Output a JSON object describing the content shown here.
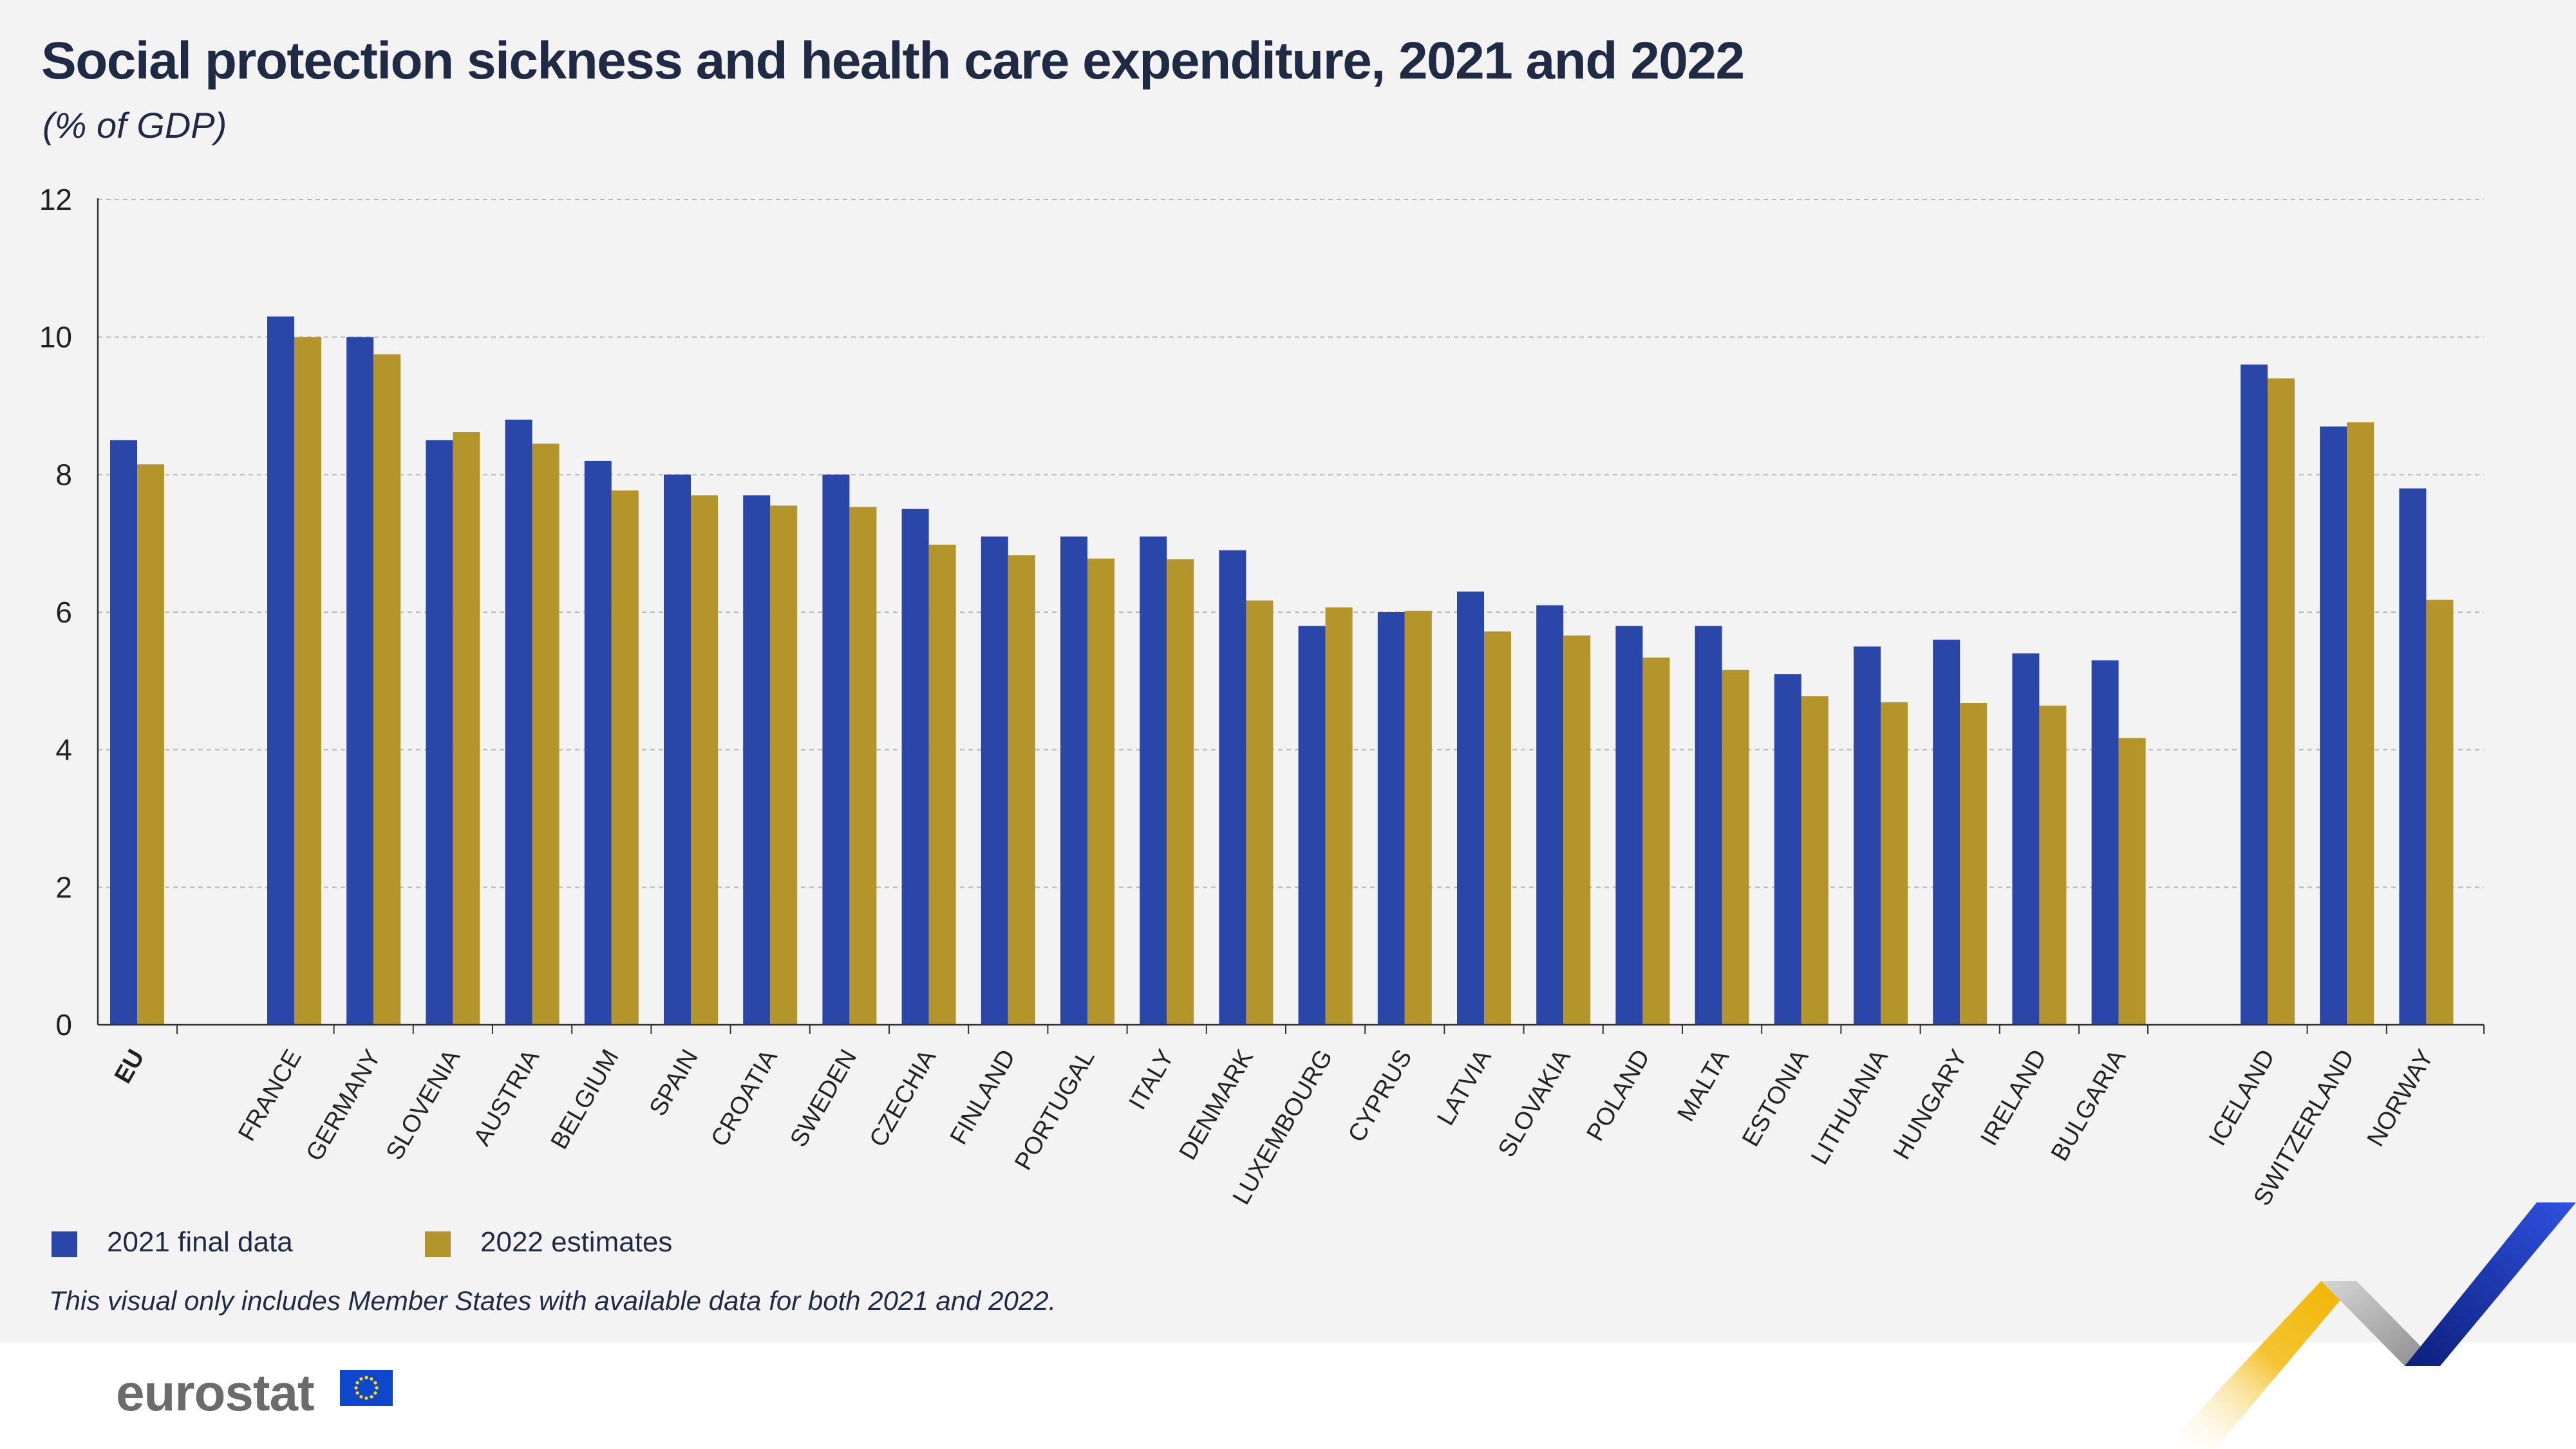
{
  "title": "Social protection sickness and health care expenditure, 2021 and 2022",
  "subtitle": "(% of GDP)",
  "legend": {
    "series_2021": "2021 final data",
    "series_2022": "2022 estimates"
  },
  "footnote": "This visual only includes Member States with available data for both 2021 and 2022.",
  "logo_text": "eurostat",
  "colors": {
    "series_2021": "#2a46a8",
    "series_2022": "#b4952b",
    "background": "#f3f3f3",
    "text": "#1f2a44"
  },
  "chart_data": {
    "type": "bar",
    "title": "Social protection sickness and health care expenditure, 2021 and 2022",
    "subtitle": "(% of GDP)",
    "xlabel": "",
    "ylabel": "",
    "ylim": [
      0,
      12
    ],
    "yticks": [
      0,
      2,
      4,
      6,
      8,
      10,
      12
    ],
    "grid": true,
    "legend_position": "bottom-left",
    "categories": [
      "EU",
      "FRANCE",
      "GERMANY",
      "SLOVENIA",
      "AUSTRIA",
      "BELGIUM",
      "SPAIN",
      "CROATIA",
      "SWEDEN",
      "CZECHIA",
      "FINLAND",
      "PORTUGAL",
      "ITALY",
      "DENMARK",
      "LUXEMBOURG",
      "CYPRUS",
      "LATVIA",
      "SLOVAKIA",
      "POLAND",
      "MALTA",
      "ESTONIA",
      "LITHUANIA",
      "HUNGARY",
      "IRELAND",
      "BULGARIA",
      "ICELAND",
      "SWITZERLAND",
      "NORWAY"
    ],
    "series": [
      {
        "name": "2021 final data",
        "values": [
          8.5,
          10.3,
          10.0,
          8.5,
          8.8,
          8.2,
          8.0,
          7.7,
          8.0,
          7.5,
          7.1,
          7.1,
          7.1,
          6.9,
          5.8,
          6.0,
          6.3,
          6.1,
          5.8,
          5.8,
          5.1,
          5.5,
          5.6,
          5.4,
          5.3,
          9.6,
          8.7,
          7.8
        ]
      },
      {
        "name": "2022 estimates",
        "values": [
          8.15,
          10.0,
          9.75,
          8.62,
          8.45,
          7.77,
          7.7,
          7.55,
          7.53,
          6.98,
          6.83,
          6.78,
          6.77,
          6.17,
          6.07,
          6.02,
          5.72,
          5.66,
          5.34,
          5.16,
          4.78,
          4.69,
          4.68,
          4.64,
          4.17,
          9.4,
          8.76,
          6.18
        ]
      }
    ]
  }
}
